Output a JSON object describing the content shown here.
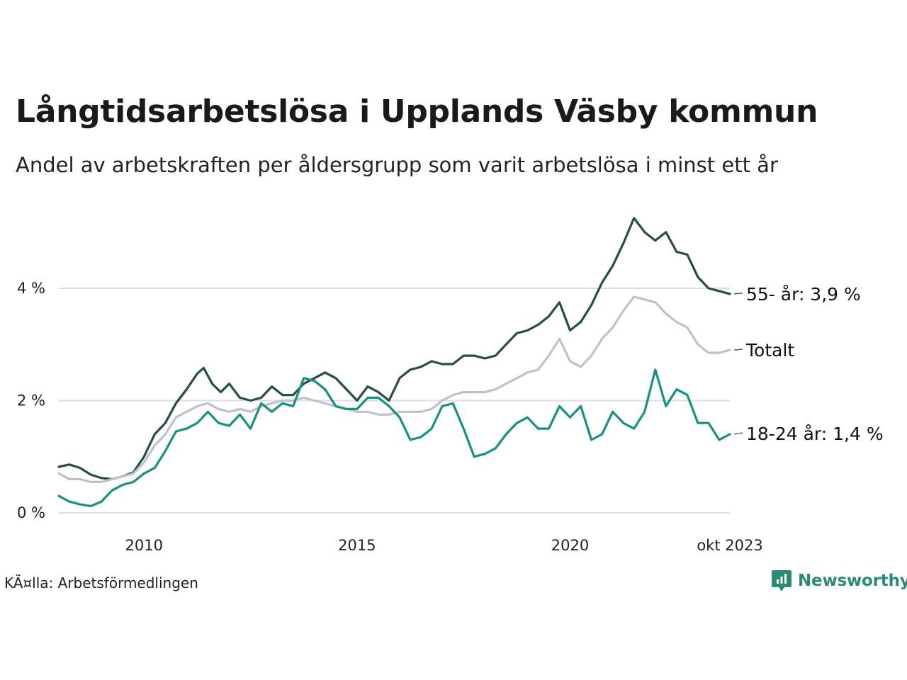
{
  "title": "Långtidsarbetslösa i Upplands Väsby kommun",
  "subtitle": "Andel av arbetskraften per åldersgrupp som varit arbetslösa i minst ett år",
  "source": "KÃ¤lla: Arbetsförmedlingen",
  "brand": "Newsworthy",
  "colors": {
    "dark": "#234d45",
    "gray": "#c2bfcc",
    "teal": "#17917f",
    "grid": "#dddddd",
    "brand": "#2a8a76"
  },
  "chart_data": {
    "type": "line",
    "title": "Långtidsarbetslösa i Upplands Väsby kommun",
    "xlabel": "",
    "ylabel": "",
    "xlim": [
      2008.0,
      2023.75
    ],
    "ylim": [
      0,
      5.4
    ],
    "y_ticks": [
      {
        "value": 0,
        "label": "0 %"
      },
      {
        "value": 2,
        "label": "2 %"
      },
      {
        "value": 4,
        "label": "4 %"
      }
    ],
    "x_ticks": [
      {
        "value": 2010,
        "label": "2010"
      },
      {
        "value": 2015,
        "label": "2015"
      },
      {
        "value": 2020,
        "label": "2020"
      },
      {
        "value": 2023.75,
        "label": "okt 2023"
      }
    ],
    "grid": true,
    "series": [
      {
        "name": "55- år",
        "end_label": "55- år: 3,9 %",
        "color": "#234d45",
        "points": [
          [
            2008.0,
            0.82
          ],
          [
            2008.25,
            0.86
          ],
          [
            2008.5,
            0.8
          ],
          [
            2008.75,
            0.68
          ],
          [
            2009.0,
            0.62
          ],
          [
            2009.25,
            0.6
          ],
          [
            2009.5,
            0.65
          ],
          [
            2009.75,
            0.72
          ],
          [
            2010.0,
            1.0
          ],
          [
            2010.25,
            1.4
          ],
          [
            2010.5,
            1.6
          ],
          [
            2010.75,
            1.95
          ],
          [
            2011.0,
            2.2
          ],
          [
            2011.25,
            2.48
          ],
          [
            2011.4,
            2.58
          ],
          [
            2011.6,
            2.3
          ],
          [
            2011.8,
            2.15
          ],
          [
            2012.0,
            2.3
          ],
          [
            2012.25,
            2.05
          ],
          [
            2012.5,
            2.0
          ],
          [
            2012.75,
            2.05
          ],
          [
            2013.0,
            2.25
          ],
          [
            2013.25,
            2.1
          ],
          [
            2013.5,
            2.1
          ],
          [
            2013.75,
            2.3
          ],
          [
            2014.0,
            2.4
          ],
          [
            2014.25,
            2.5
          ],
          [
            2014.5,
            2.4
          ],
          [
            2014.75,
            2.2
          ],
          [
            2015.0,
            2.0
          ],
          [
            2015.25,
            2.25
          ],
          [
            2015.5,
            2.15
          ],
          [
            2015.75,
            2.0
          ],
          [
            2016.0,
            2.4
          ],
          [
            2016.25,
            2.55
          ],
          [
            2016.5,
            2.6
          ],
          [
            2016.75,
            2.7
          ],
          [
            2017.0,
            2.65
          ],
          [
            2017.25,
            2.65
          ],
          [
            2017.5,
            2.8
          ],
          [
            2017.75,
            2.8
          ],
          [
            2018.0,
            2.75
          ],
          [
            2018.25,
            2.8
          ],
          [
            2018.5,
            3.0
          ],
          [
            2018.75,
            3.2
          ],
          [
            2019.0,
            3.25
          ],
          [
            2019.25,
            3.35
          ],
          [
            2019.5,
            3.5
          ],
          [
            2019.75,
            3.75
          ],
          [
            2020.0,
            3.25
          ],
          [
            2020.25,
            3.4
          ],
          [
            2020.5,
            3.7
          ],
          [
            2020.75,
            4.1
          ],
          [
            2021.0,
            4.4
          ],
          [
            2021.25,
            4.8
          ],
          [
            2021.5,
            5.25
          ],
          [
            2021.75,
            5.0
          ],
          [
            2022.0,
            4.85
          ],
          [
            2022.25,
            5.0
          ],
          [
            2022.5,
            4.65
          ],
          [
            2022.75,
            4.6
          ],
          [
            2023.0,
            4.2
          ],
          [
            2023.25,
            4.0
          ],
          [
            2023.5,
            3.95
          ],
          [
            2023.75,
            3.9
          ]
        ]
      },
      {
        "name": "Totalt",
        "end_label": "Totalt",
        "color": "#c2bfcc",
        "points": [
          [
            2008.0,
            0.7
          ],
          [
            2008.25,
            0.6
          ],
          [
            2008.5,
            0.6
          ],
          [
            2008.75,
            0.55
          ],
          [
            2009.0,
            0.55
          ],
          [
            2009.25,
            0.6
          ],
          [
            2009.5,
            0.65
          ],
          [
            2009.75,
            0.7
          ],
          [
            2010.0,
            0.9
          ],
          [
            2010.25,
            1.2
          ],
          [
            2010.5,
            1.4
          ],
          [
            2010.75,
            1.7
          ],
          [
            2011.0,
            1.8
          ],
          [
            2011.25,
            1.9
          ],
          [
            2011.5,
            1.95
          ],
          [
            2011.75,
            1.85
          ],
          [
            2012.0,
            1.8
          ],
          [
            2012.25,
            1.85
          ],
          [
            2012.5,
            1.8
          ],
          [
            2012.75,
            1.9
          ],
          [
            2013.0,
            1.95
          ],
          [
            2013.25,
            2.0
          ],
          [
            2013.5,
            2.0
          ],
          [
            2013.75,
            2.05
          ],
          [
            2014.0,
            2.0
          ],
          [
            2014.25,
            1.95
          ],
          [
            2014.5,
            1.9
          ],
          [
            2014.75,
            1.85
          ],
          [
            2015.0,
            1.8
          ],
          [
            2015.25,
            1.8
          ],
          [
            2015.5,
            1.75
          ],
          [
            2015.75,
            1.75
          ],
          [
            2016.0,
            1.8
          ],
          [
            2016.25,
            1.8
          ],
          [
            2016.5,
            1.8
          ],
          [
            2016.75,
            1.85
          ],
          [
            2017.0,
            2.0
          ],
          [
            2017.25,
            2.1
          ],
          [
            2017.5,
            2.15
          ],
          [
            2017.75,
            2.15
          ],
          [
            2018.0,
            2.15
          ],
          [
            2018.25,
            2.2
          ],
          [
            2018.5,
            2.3
          ],
          [
            2018.75,
            2.4
          ],
          [
            2019.0,
            2.5
          ],
          [
            2019.25,
            2.55
          ],
          [
            2019.5,
            2.8
          ],
          [
            2019.75,
            3.1
          ],
          [
            2020.0,
            2.7
          ],
          [
            2020.25,
            2.6
          ],
          [
            2020.5,
            2.8
          ],
          [
            2020.75,
            3.1
          ],
          [
            2021.0,
            3.3
          ],
          [
            2021.25,
            3.6
          ],
          [
            2021.5,
            3.85
          ],
          [
            2021.75,
            3.8
          ],
          [
            2022.0,
            3.75
          ],
          [
            2022.25,
            3.55
          ],
          [
            2022.5,
            3.4
          ],
          [
            2022.75,
            3.3
          ],
          [
            2023.0,
            3.0
          ],
          [
            2023.25,
            2.85
          ],
          [
            2023.5,
            2.85
          ],
          [
            2023.75,
            2.9
          ]
        ]
      },
      {
        "name": "18-24 år",
        "end_label": "18-24 år: 1,4 %",
        "color": "#17917f",
        "points": [
          [
            2008.0,
            0.3
          ],
          [
            2008.25,
            0.2
          ],
          [
            2008.5,
            0.15
          ],
          [
            2008.75,
            0.12
          ],
          [
            2009.0,
            0.2
          ],
          [
            2009.25,
            0.4
          ],
          [
            2009.5,
            0.5
          ],
          [
            2009.75,
            0.55
          ],
          [
            2010.0,
            0.7
          ],
          [
            2010.25,
            0.8
          ],
          [
            2010.5,
            1.1
          ],
          [
            2010.75,
            1.45
          ],
          [
            2011.0,
            1.5
          ],
          [
            2011.25,
            1.6
          ],
          [
            2011.5,
            1.8
          ],
          [
            2011.75,
            1.6
          ],
          [
            2012.0,
            1.55
          ],
          [
            2012.25,
            1.75
          ],
          [
            2012.5,
            1.5
          ],
          [
            2012.75,
            1.95
          ],
          [
            2013.0,
            1.8
          ],
          [
            2013.25,
            1.95
          ],
          [
            2013.5,
            1.9
          ],
          [
            2013.75,
            2.4
          ],
          [
            2014.0,
            2.35
          ],
          [
            2014.25,
            2.2
          ],
          [
            2014.5,
            1.9
          ],
          [
            2014.75,
            1.85
          ],
          [
            2015.0,
            1.85
          ],
          [
            2015.25,
            2.05
          ],
          [
            2015.5,
            2.05
          ],
          [
            2015.75,
            1.9
          ],
          [
            2016.0,
            1.7
          ],
          [
            2016.25,
            1.3
          ],
          [
            2016.5,
            1.35
          ],
          [
            2016.75,
            1.5
          ],
          [
            2017.0,
            1.9
          ],
          [
            2017.25,
            1.95
          ],
          [
            2017.5,
            1.5
          ],
          [
            2017.75,
            1.0
          ],
          [
            2018.0,
            1.05
          ],
          [
            2018.25,
            1.15
          ],
          [
            2018.5,
            1.4
          ],
          [
            2018.75,
            1.6
          ],
          [
            2019.0,
            1.7
          ],
          [
            2019.25,
            1.5
          ],
          [
            2019.5,
            1.5
          ],
          [
            2019.75,
            1.9
          ],
          [
            2020.0,
            1.7
          ],
          [
            2020.25,
            1.9
          ],
          [
            2020.5,
            1.3
          ],
          [
            2020.75,
            1.4
          ],
          [
            2021.0,
            1.8
          ],
          [
            2021.25,
            1.6
          ],
          [
            2021.5,
            1.5
          ],
          [
            2021.75,
            1.8
          ],
          [
            2022.0,
            2.55
          ],
          [
            2022.25,
            1.9
          ],
          [
            2022.5,
            2.2
          ],
          [
            2022.75,
            2.1
          ],
          [
            2023.0,
            1.6
          ],
          [
            2023.25,
            1.6
          ],
          [
            2023.5,
            1.3
          ],
          [
            2023.75,
            1.4
          ]
        ]
      }
    ]
  }
}
